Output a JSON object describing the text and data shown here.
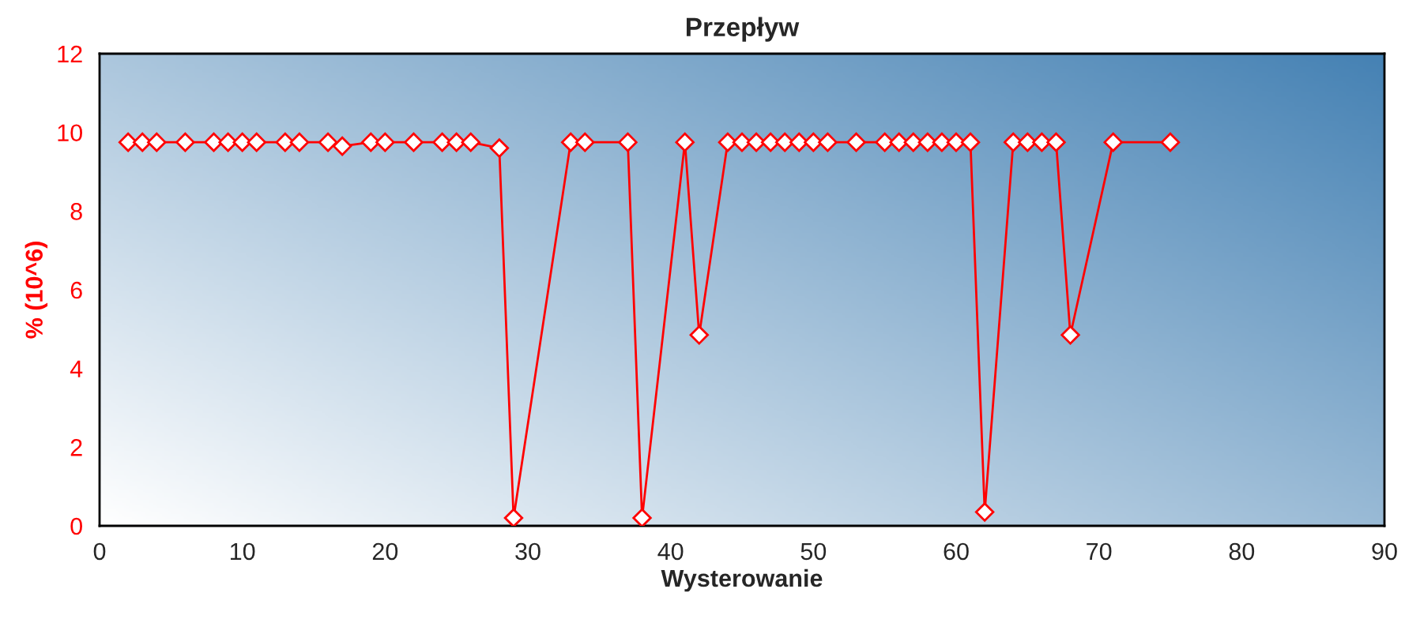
{
  "chart_data": {
    "type": "line",
    "title": "Przepływ",
    "xlabel": "Wysterowanie",
    "ylabel": "% (10^6)",
    "x": [
      2,
      3,
      4,
      6,
      8,
      9,
      10,
      11,
      13,
      14,
      16,
      17,
      19,
      20,
      22,
      24,
      25,
      26,
      28,
      29,
      33,
      34,
      37,
      38,
      41,
      42,
      44,
      45,
      46,
      47,
      48,
      49,
      50,
      51,
      53,
      55,
      56,
      57,
      58,
      59,
      60,
      61,
      62,
      64,
      65,
      66,
      67,
      68,
      71,
      75
    ],
    "series": [
      {
        "color": "#ff0000",
        "values": [
          9.75,
          9.75,
          9.75,
          9.75,
          9.75,
          9.75,
          9.75,
          9.75,
          9.75,
          9.75,
          9.75,
          9.65,
          9.75,
          9.75,
          9.75,
          9.75,
          9.75,
          9.75,
          9.6,
          0.2,
          9.75,
          9.75,
          9.75,
          0.2,
          9.75,
          4.85,
          9.75,
          9.75,
          9.75,
          9.75,
          9.75,
          9.75,
          9.75,
          9.75,
          9.75,
          9.75,
          9.75,
          9.75,
          9.75,
          9.75,
          9.75,
          9.75,
          0.35,
          9.75,
          9.75,
          9.75,
          9.75,
          4.85,
          9.75,
          9.75
        ]
      }
    ],
    "xlim": [
      0,
      90
    ],
    "xticks": [
      0,
      10,
      20,
      30,
      40,
      50,
      60,
      70,
      80,
      90
    ],
    "ylim": [
      0,
      12
    ],
    "yticks": [
      0,
      2,
      4,
      6,
      8,
      10,
      12
    ],
    "marker": "diamond",
    "line_style": "solid",
    "grid": false,
    "legend": false
  }
}
